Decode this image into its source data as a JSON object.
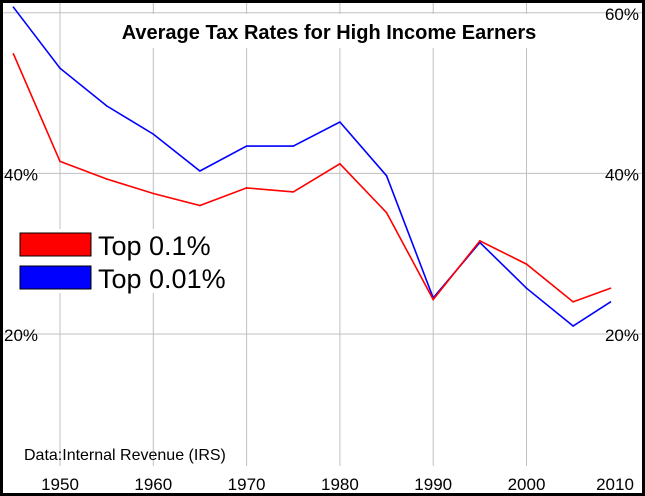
{
  "chart_data": {
    "type": "line",
    "title": "Average Tax Rates for High Income Earners",
    "source_note": "Data:Internal Revenue (IRS)",
    "xlabel": "",
    "ylabel": "",
    "xlim": [
      1945,
      2010
    ],
    "ylim": [
      0,
      60
    ],
    "x_ticks": [
      1950,
      1960,
      1970,
      1980,
      1990,
      2000,
      2010
    ],
    "y_ticks": [
      20,
      40,
      60
    ],
    "y_tick_labels_left": [
      "20%",
      "40%"
    ],
    "y_tick_labels_right": [
      "20%",
      "40%",
      "60%"
    ],
    "grid": true,
    "legend_position": "left-middle",
    "x": [
      1945,
      1950,
      1955,
      1960,
      1965,
      1970,
      1975,
      1980,
      1985,
      1990,
      1995,
      2000,
      2005,
      2009
    ],
    "series": [
      {
        "name": "Top 0.1%",
        "color": "#ff0000",
        "values": [
          54.9,
          41.5,
          39.3,
          37.5,
          36.0,
          38.2,
          37.7,
          41.2,
          35.1,
          24.3,
          31.6,
          28.7,
          24.0,
          25.7
        ]
      },
      {
        "name": "Top 0.01%",
        "color": "#0000ff",
        "values": [
          60.7,
          53.1,
          48.4,
          44.9,
          40.3,
          43.4,
          43.4,
          46.4,
          39.7,
          24.5,
          31.4,
          25.7,
          21.0,
          24.0
        ]
      }
    ]
  }
}
